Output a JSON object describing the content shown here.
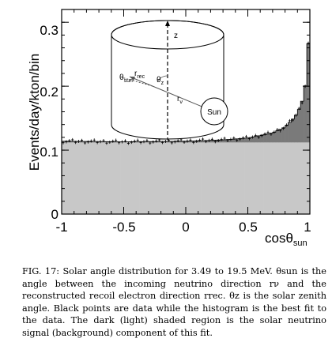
{
  "chart_data": {
    "type": "bar",
    "ylabel": "Events/day/kton/bin",
    "xlabel": "cosθsun",
    "xlabel_main": "cosθ",
    "xlabel_sub": "sun",
    "xlim": [
      -1,
      1
    ],
    "ylim": [
      0,
      0.32
    ],
    "x_ticks": [
      {
        "value": -1,
        "label": "-1"
      },
      {
        "value": -0.5,
        "label": "-0.5"
      },
      {
        "value": 0,
        "label": "0"
      },
      {
        "value": 0.5,
        "label": "0.5"
      },
      {
        "value": 1,
        "label": "1"
      }
    ],
    "y_ticks": [
      {
        "value": 0,
        "label": "0"
      },
      {
        "value": 0.1,
        "label": "0.1"
      },
      {
        "value": 0.2,
        "label": "0.2"
      },
      {
        "value": 0.3,
        "label": "0.3"
      }
    ],
    "background_level": 0.112,
    "bins": 80,
    "series": [
      {
        "component": "background",
        "color": "#c8c8c8"
      },
      {
        "component": "solar neutrino signal",
        "color": "#7a7a7a"
      }
    ],
    "signal_excess_points": [
      {
        "x": -1.0,
        "y": 0.114
      },
      {
        "x": -0.5,
        "y": 0.113
      },
      {
        "x": 0.0,
        "y": 0.114
      },
      {
        "x": 0.3,
        "y": 0.116
      },
      {
        "x": 0.5,
        "y": 0.119
      },
      {
        "x": 0.7,
        "y": 0.127
      },
      {
        "x": 0.8,
        "y": 0.136
      },
      {
        "x": 0.88,
        "y": 0.152
      },
      {
        "x": 0.93,
        "y": 0.17
      },
      {
        "x": 0.96,
        "y": 0.196
      },
      {
        "x": 0.98,
        "y": 0.233
      },
      {
        "x": 0.995,
        "y": 0.3
      }
    ],
    "inset": {
      "z_label": "z",
      "theta_sun_main": "θ",
      "theta_sun_sub": "sun",
      "r_rec_main": "r",
      "r_rec_sub": "rec",
      "theta_z_main": "θ",
      "theta_z_sub": "z",
      "r_nu_main": "r",
      "r_nu_sub": "ν",
      "sun_label": "Sun"
    }
  },
  "caption": {
    "label": "FIG. 17:",
    "text": "Solar angle distribution for 3.49 to 19.5 MeV. θsun is the angle between the incoming neutrino direction rν and the reconstructed recoil electron direction rrec. θz is the solar zenith angle. Black points are data while the histogram is the best fit to the data. The dark (light) shaded region is the solar neutrino signal (background) component of this fit."
  }
}
